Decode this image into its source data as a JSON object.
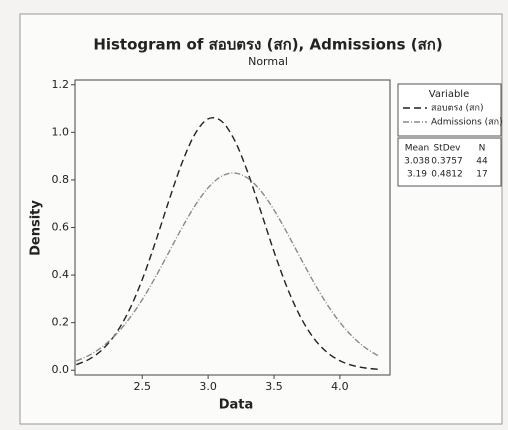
{
  "chart_data": {
    "type": "line",
    "title": "Histogram of สอบตรง (สก), Admissions (สก)",
    "subtitle": "Normal",
    "x_label": "Data",
    "y_label": "Density",
    "x": [
      2.0,
      2.1,
      2.2,
      2.3,
      2.4,
      2.5,
      2.6,
      2.7,
      2.8,
      2.9,
      3.0,
      3.1,
      3.2,
      3.3,
      3.4,
      3.5,
      3.6,
      3.7,
      3.8,
      3.9,
      4.0,
      4.1,
      4.2,
      4.3
    ],
    "series": [
      {
        "name": "สอบตรง (สก)",
        "color": "#222222",
        "dash": "7,4",
        "values": [
          0.0234,
          0.047,
          0.0882,
          0.1543,
          0.2511,
          0.3809,
          0.5382,
          0.7085,
          0.8689,
          0.9926,
          1.0565,
          1.0476,
          0.9676,
          0.8326,
          0.6675,
          0.4986,
          0.3468,
          0.2249,
          0.1357,
          0.0764,
          0.04,
          0.0195,
          0.0089,
          0.0038
        ]
      },
      {
        "name": "Admissions (สก)",
        "color": "#8a8a8a",
        "dash": "6,2,1,2",
        "values": [
          0.0389,
          0.0637,
          0.0999,
          0.1499,
          0.2155,
          0.2966,
          0.391,
          0.4937,
          0.597,
          0.6914,
          0.7669,
          0.8148,
          0.8289,
          0.8077,
          0.7538,
          0.6737,
          0.5767,
          0.4728,
          0.3713,
          0.2792,
          0.2011,
          0.1387,
          0.0916,
          0.058
        ]
      }
    ],
    "xlim": [
      1.99,
      4.38
    ],
    "xticks": [
      2.5,
      {
        "value": 3.0,
        "label": "3.0"
      },
      3.5,
      {
        "value": 4.0,
        "label": "4.0"
      }
    ],
    "ylim": [
      -0.02,
      1.22
    ],
    "yticks": [
      {
        "value": 0.0,
        "label": "0.0"
      },
      0.2,
      0.4,
      0.6,
      0.8,
      {
        "value": 1.0,
        "label": "1.0"
      },
      1.2
    ],
    "legend_title": "Variable",
    "stats": {
      "headers": [
        "Mean",
        "StDev",
        "N"
      ],
      "rows": [
        [
          3.038,
          0.3757,
          44
        ],
        [
          3.19,
          0.4812,
          17
        ]
      ]
    }
  }
}
